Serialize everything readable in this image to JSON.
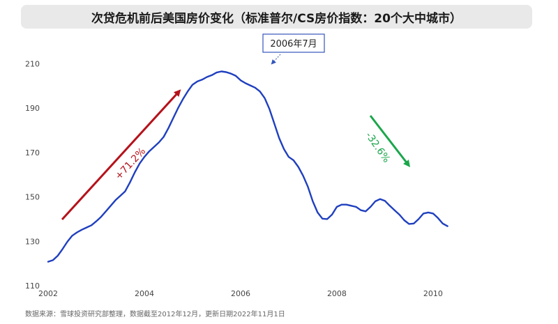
{
  "header": {
    "title": "次贷危机前后美国房价变化（标准普尔/CS房价指数：20个大中城市）"
  },
  "source_note": "数据来源：雪球投资研究部整理，数据截至2012年12月，更新日期2022年11月1日",
  "chart_data": {
    "type": "line",
    "title": "次贷危机前后美国房价变化（标准普尔/CS房价指数：20个大中城市）",
    "xlabel": "",
    "ylabel": "",
    "xlim": [
      2002.0,
      2011.9
    ],
    "ylim": [
      110,
      212
    ],
    "x_ticks": [
      "2002",
      "2004",
      "2006",
      "2008",
      "2010"
    ],
    "y_ticks": [
      "110",
      "130",
      "150",
      "170",
      "190",
      "210"
    ],
    "grid": false,
    "series": [
      {
        "name": "",
        "color": "#1f3fbf",
        "points": [
          [
            2002.0,
            120.8
          ],
          [
            2002.1,
            121.5
          ],
          [
            2002.2,
            123.5
          ],
          [
            2002.3,
            126.5
          ],
          [
            2002.4,
            129.8
          ],
          [
            2002.5,
            132.5
          ],
          [
            2002.6,
            134.0
          ],
          [
            2002.7,
            135.2
          ],
          [
            2002.8,
            136.2
          ],
          [
            2002.9,
            137.2
          ],
          [
            2003.0,
            139.0
          ],
          [
            2003.1,
            141.0
          ],
          [
            2003.2,
            143.5
          ],
          [
            2003.3,
            146.0
          ],
          [
            2003.4,
            148.5
          ],
          [
            2003.5,
            150.5
          ],
          [
            2003.6,
            152.5
          ],
          [
            2003.7,
            156.5
          ],
          [
            2003.8,
            161.0
          ],
          [
            2003.9,
            165.0
          ],
          [
            2004.0,
            168.0
          ],
          [
            2004.1,
            170.5
          ],
          [
            2004.2,
            172.5
          ],
          [
            2004.3,
            174.5
          ],
          [
            2004.4,
            177.0
          ],
          [
            2004.5,
            181.0
          ],
          [
            2004.6,
            185.5
          ],
          [
            2004.7,
            190.0
          ],
          [
            2004.8,
            194.0
          ],
          [
            2004.9,
            197.5
          ],
          [
            2005.0,
            200.5
          ],
          [
            2005.1,
            202.0
          ],
          [
            2005.2,
            202.8
          ],
          [
            2005.3,
            204.0
          ],
          [
            2005.4,
            204.8
          ],
          [
            2005.5,
            206.0
          ],
          [
            2005.6,
            206.5
          ],
          [
            2005.7,
            206.2
          ],
          [
            2005.8,
            205.5
          ],
          [
            2005.9,
            204.5
          ],
          [
            2006.0,
            202.5
          ],
          [
            2006.1,
            201.2
          ],
          [
            2006.2,
            200.2
          ],
          [
            2006.3,
            199.2
          ],
          [
            2006.4,
            197.5
          ],
          [
            2006.5,
            194.5
          ],
          [
            2006.6,
            189.5
          ],
          [
            2006.7,
            183.0
          ],
          [
            2006.8,
            176.5
          ],
          [
            2006.9,
            171.5
          ],
          [
            2007.0,
            168.0
          ],
          [
            2007.1,
            166.5
          ],
          [
            2007.2,
            163.5
          ],
          [
            2007.3,
            159.5
          ],
          [
            2007.4,
            154.5
          ],
          [
            2007.5,
            148.0
          ],
          [
            2007.6,
            143.0
          ],
          [
            2007.7,
            140.2
          ],
          [
            2007.8,
            140.0
          ],
          [
            2007.9,
            142.0
          ],
          [
            2008.0,
            145.5
          ],
          [
            2008.1,
            146.5
          ],
          [
            2008.2,
            146.5
          ],
          [
            2008.3,
            146.0
          ],
          [
            2008.4,
            145.5
          ],
          [
            2008.5,
            144.0
          ],
          [
            2008.6,
            143.5
          ],
          [
            2008.7,
            145.5
          ],
          [
            2008.8,
            148.0
          ],
          [
            2008.9,
            149.0
          ],
          [
            2009.0,
            148.2
          ],
          [
            2009.1,
            146.0
          ],
          [
            2009.2,
            144.0
          ],
          [
            2009.3,
            142.0
          ],
          [
            2009.4,
            139.5
          ],
          [
            2009.5,
            137.8
          ],
          [
            2009.6,
            138.0
          ],
          [
            2009.7,
            140.0
          ],
          [
            2009.8,
            142.5
          ],
          [
            2009.9,
            143.0
          ],
          [
            2010.0,
            142.5
          ],
          [
            2010.1,
            140.5
          ],
          [
            2010.2,
            138.0
          ],
          [
            2010.3,
            136.8
          ]
        ]
      }
    ],
    "annotations": {
      "peak_label": "2006年7月",
      "rise_label": "+71.2%",
      "fall_label": "-32.6%",
      "rise_color": "#b5121b",
      "fall_color": "#1aa64b",
      "peak_box_border": "#3355bb"
    }
  }
}
